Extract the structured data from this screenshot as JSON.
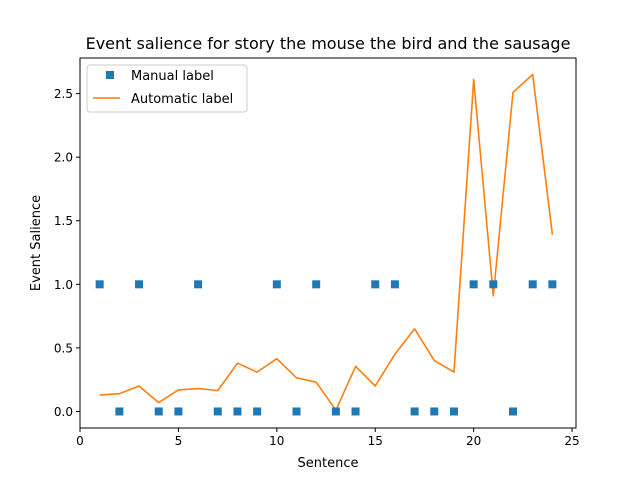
{
  "chart_data": {
    "type": "line",
    "title": "Event salience for story the mouse the bird and the sausage",
    "xlabel": "Sentence",
    "ylabel": "Event Salience",
    "xlim": [
      0,
      25.2
    ],
    "ylim": [
      -0.13,
      2.78
    ],
    "xticks": [
      "0",
      "5",
      "10",
      "15",
      "20",
      "25"
    ],
    "yticks": [
      "0.0",
      "0.5",
      "1.0",
      "1.5",
      "2.0",
      "2.5"
    ],
    "grid": false,
    "legend_position": "top-left",
    "series": [
      {
        "name": "Manual label",
        "style": "square-markers",
        "color": "#1f77b4",
        "x": [
          1,
          2,
          3,
          4,
          5,
          6,
          7,
          8,
          9,
          10,
          11,
          12,
          13,
          14,
          15,
          16,
          17,
          18,
          19,
          20,
          21,
          22,
          23,
          24
        ],
        "y": [
          1,
          0,
          1,
          0,
          0,
          1,
          0,
          0,
          0,
          1,
          0,
          1,
          0,
          0,
          1,
          1,
          0,
          0,
          0,
          1,
          1,
          0,
          1,
          1
        ]
      },
      {
        "name": "Automatic label",
        "style": "line",
        "color": "#ff7f0e",
        "x": [
          1,
          2,
          3,
          4,
          5,
          6,
          7,
          8,
          9,
          10,
          11,
          12,
          13,
          14,
          15,
          16,
          17,
          18,
          19,
          20,
          21,
          22,
          23,
          24
        ],
        "y": [
          0.13,
          0.14,
          0.2,
          0.07,
          0.17,
          0.18,
          0.165,
          0.38,
          0.31,
          0.415,
          0.265,
          0.23,
          0.01,
          0.355,
          0.2,
          0.45,
          0.65,
          0.4,
          0.31,
          2.61,
          0.91,
          2.51,
          2.65,
          1.39
        ]
      }
    ]
  }
}
